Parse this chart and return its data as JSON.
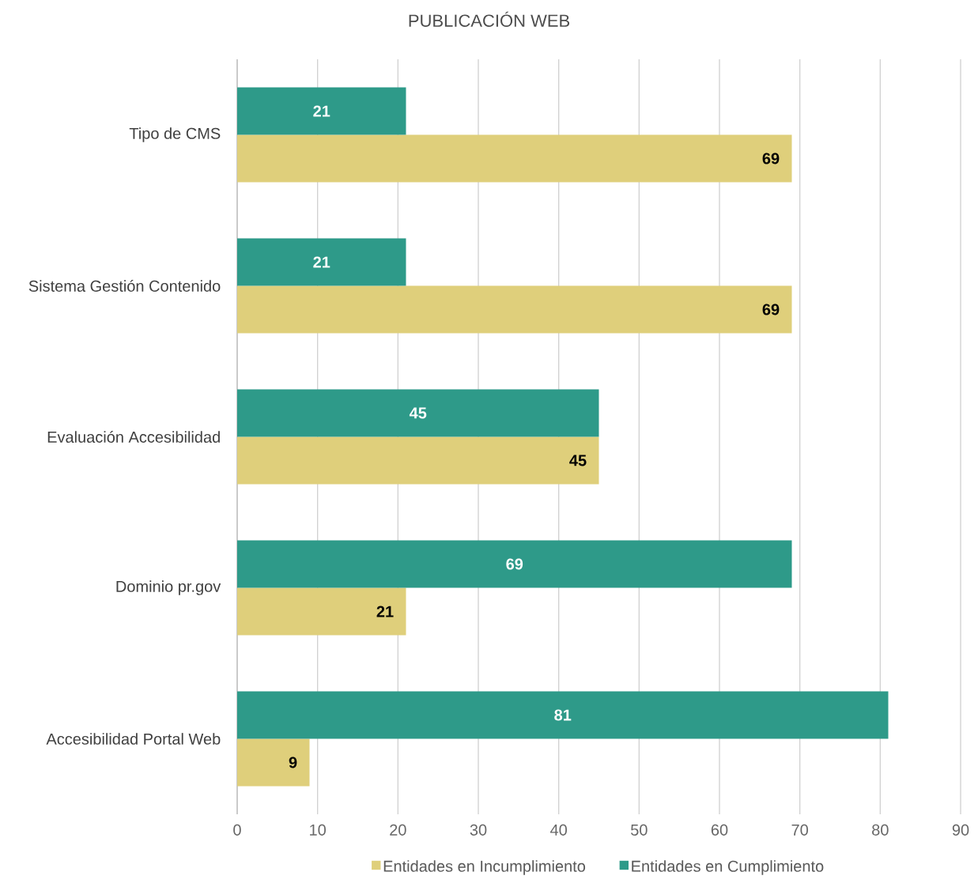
{
  "chart_data": {
    "type": "bar",
    "orientation": "horizontal",
    "title": "PUBLICACIÓN WEB",
    "categories": [
      "Tipo de CMS",
      "Sistema Gestión Contenido",
      "Evaluación Accesibilidad",
      "Dominio pr.gov",
      "Accesibilidad Portal Web"
    ],
    "series": [
      {
        "name": "Entidades en Incumplimiento",
        "color": "#dfcf7b",
        "values": [
          69,
          69,
          45,
          21,
          9
        ]
      },
      {
        "name": "Entidades en Cumplimiento",
        "color": "#2e9a89",
        "values": [
          21,
          21,
          45,
          69,
          81
        ]
      }
    ],
    "xlim": [
      0,
      90
    ],
    "xticks": [
      0,
      10,
      20,
      30,
      40,
      50,
      60,
      70,
      80,
      90
    ],
    "grid": "x",
    "legend": "bottom",
    "data_labels": true
  }
}
